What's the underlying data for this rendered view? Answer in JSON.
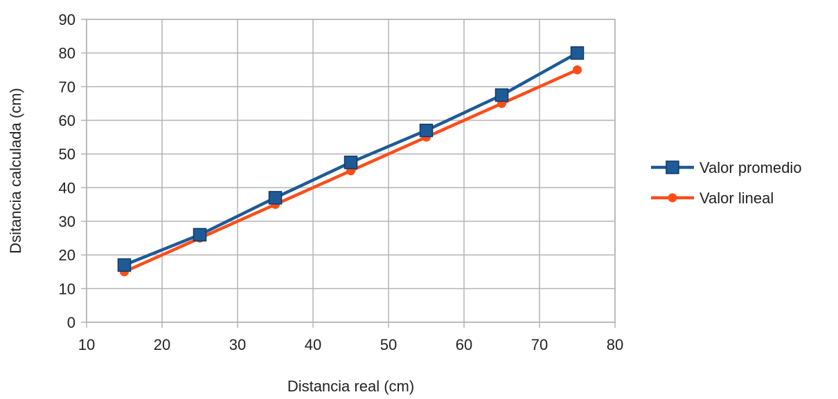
{
  "chart_data": {
    "type": "line",
    "title": "",
    "xlabel": "Distancia real (cm)",
    "ylabel": "Dsitancia calculada (cm)",
    "xlim": [
      10,
      80
    ],
    "ylim": [
      0,
      90
    ],
    "x_ticks": [
      "10",
      "20",
      "30",
      "40",
      "50",
      "60",
      "70",
      "80"
    ],
    "y_ticks": [
      "0",
      "10",
      "20",
      "30",
      "40",
      "50",
      "60",
      "70",
      "80",
      "90"
    ],
    "grid": true,
    "legend_position": "right",
    "x": [
      15,
      25,
      35,
      45,
      55,
      65,
      75
    ],
    "series": [
      {
        "name": "Valor promedio",
        "color": "#1f5a96",
        "marker": "square",
        "values": [
          17,
          26,
          37,
          47.5,
          57,
          67.5,
          80
        ]
      },
      {
        "name": "Valor lineal",
        "color": "#ff4d1a",
        "marker": "circle",
        "values": [
          15,
          25,
          35,
          45,
          55,
          65,
          75
        ]
      }
    ]
  }
}
